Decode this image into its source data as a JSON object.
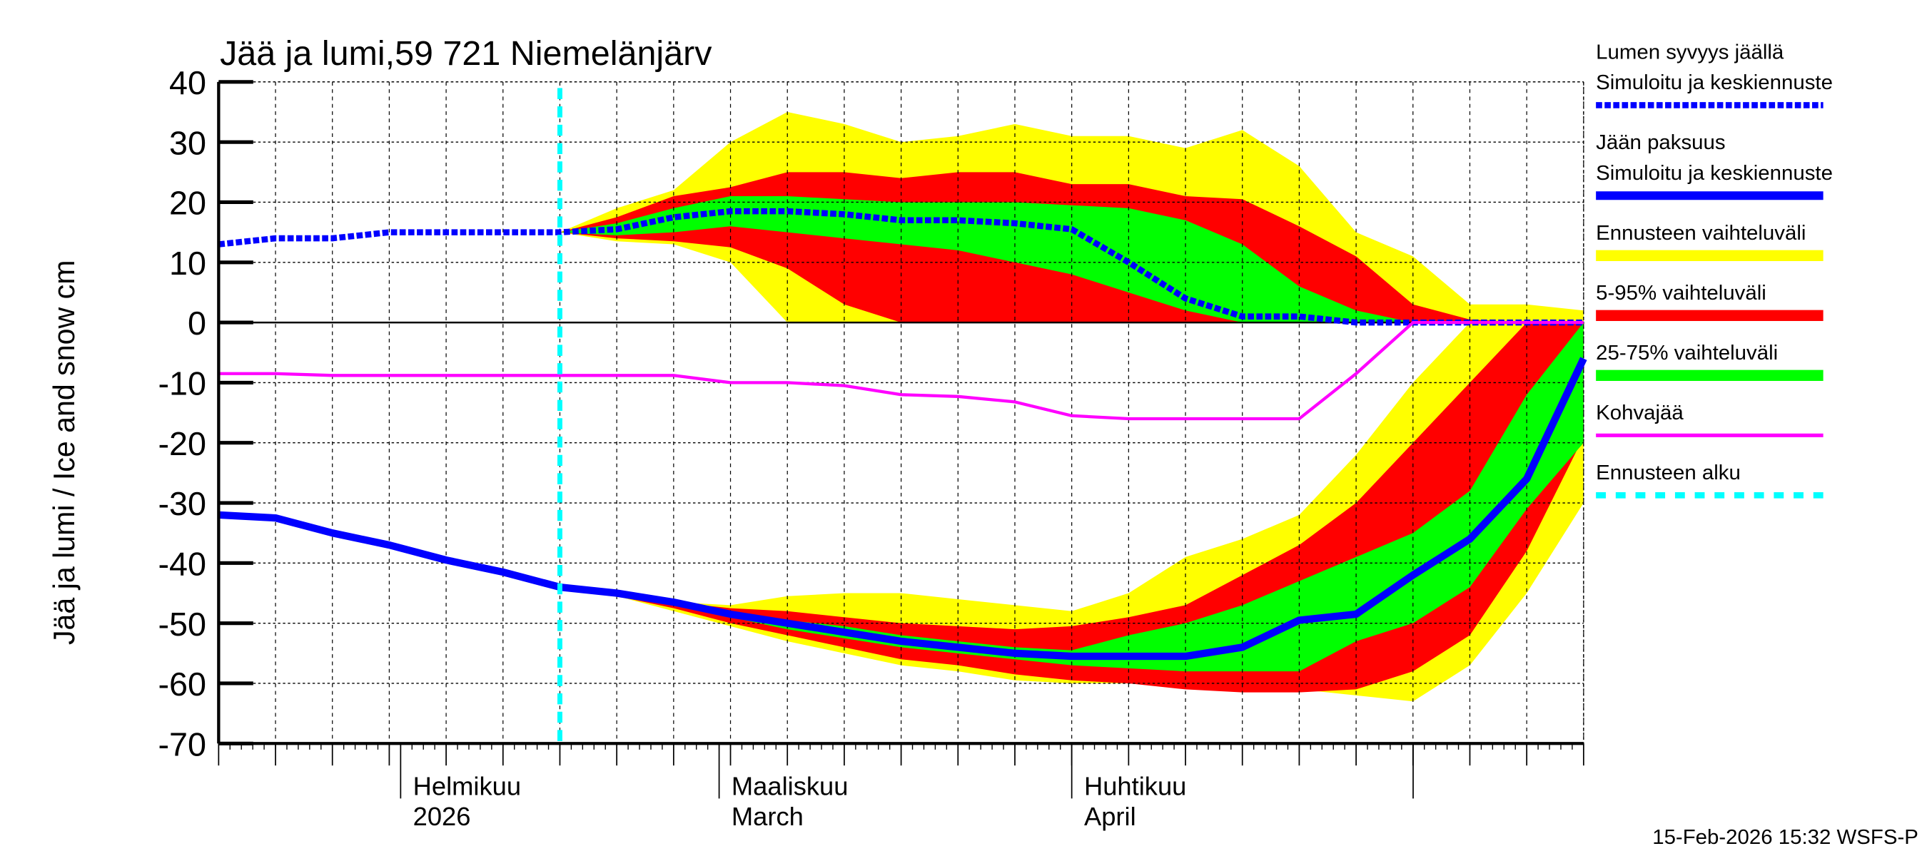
{
  "chart_data": {
    "type": "area",
    "title": "Jää ja lumi,59 721 Niemelänjärv",
    "ylabel": "Jää ja lumi / Ice and snow    cm",
    "ylim": [
      -70,
      40
    ],
    "yticks": [
      40,
      30,
      20,
      10,
      0,
      -10,
      -20,
      -30,
      -40,
      -50,
      -60,
      -70
    ],
    "xlim": [
      "2026-01-16",
      "2026-05-16"
    ],
    "month_labels": [
      {
        "date": "2026-02-01",
        "line1": "Helmikuu",
        "line2": "2026"
      },
      {
        "date": "2026-03-01",
        "line1": "Maaliskuu",
        "line2": "March"
      },
      {
        "date": "2026-04-01",
        "line1": "Huhtikuu",
        "line2": "April"
      }
    ],
    "grid": true,
    "legend_placement": "right",
    "forecast_start": "2026-02-15",
    "dates": [
      "2026-01-16",
      "2026-01-21",
      "2026-01-26",
      "2026-01-31",
      "2026-02-05",
      "2026-02-10",
      "2026-02-15",
      "2026-02-20",
      "2026-02-25",
      "2026-03-02",
      "2026-03-07",
      "2026-03-12",
      "2026-03-17",
      "2026-03-22",
      "2026-03-27",
      "2026-04-01",
      "2026-04-06",
      "2026-04-11",
      "2026-04-16",
      "2026-04-21",
      "2026-04-26",
      "2026-05-01",
      "2026-05-06",
      "2026-05-11",
      "2026-05-16"
    ],
    "series": [
      {
        "name": "Lumen syvyys jäällä Simuloitu ja keskiennuste",
        "color": "#0000ff",
        "style": "dotted",
        "values": [
          13,
          14,
          14,
          15,
          15,
          15,
          15,
          15.5,
          17.5,
          18.5,
          18.5,
          18,
          17,
          17,
          16.5,
          15.5,
          10,
          4,
          1,
          1,
          0,
          0,
          0,
          0,
          0
        ]
      },
      {
        "name": "Jään paksuus Simuloitu ja keskiennuste",
        "color": "#0000ff",
        "style": "solid",
        "values": [
          -32,
          -32.5,
          -35,
          -37,
          -39.5,
          -41.5,
          -44,
          -45,
          -46.5,
          -48.5,
          -50,
          -51.5,
          -53,
          -54,
          -55,
          -55.5,
          -55.5,
          -55.5,
          -54,
          -49.5,
          -48.5,
          -42,
          -36,
          -26,
          -6
        ]
      },
      {
        "name": "Kohvajää",
        "color": "#ff00ff",
        "style": "solid",
        "values": [
          -8.5,
          -8.5,
          -8.8,
          -8.8,
          -8.8,
          -8.8,
          -8.8,
          -8.8,
          -8.8,
          -10,
          -10,
          -10.5,
          -12,
          -12.3,
          -13.2,
          -15.5,
          -16,
          -16,
          -16,
          -16,
          -8.5,
          0,
          0,
          0,
          0
        ]
      }
    ],
    "bands_start_index": 6,
    "bands": {
      "snow": {
        "yellow_min": [
          15,
          13.5,
          13,
          10,
          0,
          0,
          0,
          0,
          0,
          0,
          0,
          0,
          0,
          0,
          0,
          0,
          0,
          0,
          0
        ],
        "yellow_max": [
          15,
          19,
          22,
          30,
          35,
          33,
          30,
          31,
          33,
          31,
          31,
          29,
          32,
          26,
          15,
          11,
          3,
          3,
          2
        ],
        "red_min": [
          15,
          14,
          13.5,
          12.5,
          9,
          3,
          0,
          0,
          0,
          0,
          0,
          0,
          0,
          0,
          0,
          0,
          0,
          0,
          0
        ],
        "red_max": [
          15,
          17.5,
          21,
          22.5,
          25,
          25,
          24,
          25,
          25,
          23,
          23,
          21,
          20.5,
          16,
          11,
          3,
          0.5,
          0,
          0
        ],
        "green_min": [
          15,
          14.5,
          15,
          16,
          15,
          14,
          13,
          12,
          10,
          8,
          5,
          2,
          0,
          0,
          0,
          0,
          0,
          0,
          0
        ],
        "green_max": [
          15,
          16.5,
          19,
          21,
          21,
          20.5,
          20,
          20,
          20,
          19.5,
          19,
          17,
          13,
          6,
          2,
          0,
          0,
          0,
          0
        ]
      },
      "ice": {
        "yellow_min": [
          -44,
          -45.5,
          -48,
          -50.5,
          -53,
          -55,
          -57,
          -58,
          -59.5,
          -60,
          -60,
          -60,
          -60.5,
          -61,
          -62,
          -63,
          -57,
          -45,
          -30
        ],
        "yellow_max": [
          -44,
          -45,
          -46.5,
          -47,
          -45.5,
          -45,
          -45,
          -46,
          -47,
          -48,
          -45,
          -39,
          -36,
          -32,
          -22,
          -10,
          0,
          0,
          0
        ],
        "red_min": [
          -44,
          -45.5,
          -47.5,
          -50,
          -52,
          -54,
          -56,
          -57,
          -58.5,
          -59.5,
          -60,
          -61,
          -61.5,
          -61.5,
          -61,
          -58,
          -52,
          -38,
          -19
        ],
        "red_max": [
          -44,
          -45,
          -46.5,
          -47.5,
          -48,
          -49,
          -50,
          -50.5,
          -51,
          -50.5,
          -49,
          -47,
          -42,
          -37,
          -30,
          -20,
          -10,
          0,
          0
        ],
        "green_min": [
          -44,
          -45.5,
          -47,
          -49,
          -51,
          -52.5,
          -54,
          -55,
          -56,
          -57,
          -57.5,
          -58,
          -58,
          -58,
          -53,
          -50,
          -44,
          -31,
          -20
        ],
        "green_max": [
          -44,
          -45,
          -46.5,
          -48,
          -49.5,
          -50.5,
          -52,
          -53,
          -54,
          -54.5,
          -52,
          -50,
          -47,
          -43,
          -39,
          -35,
          -28,
          -12,
          0
        ]
      }
    },
    "colors": {
      "yellow": "#ffff00",
      "red": "#ff0000",
      "green": "#00ff00",
      "forecast_line": "#00ffff"
    },
    "legend": [
      {
        "line1": "Lumen syvyys jäällä",
        "line2": "Simuloitu ja keskiennuste",
        "color": "#0000ff",
        "style": "dotted"
      },
      {
        "line1": "Jään paksuus",
        "line2": "Simuloitu ja keskiennuste",
        "color": "#0000ff",
        "style": "solid"
      },
      {
        "line1": "Ennusteen vaihteluväli",
        "color": "#ffff00",
        "style": "band"
      },
      {
        "line1": "5-95% vaihteluväli",
        "color": "#ff0000",
        "style": "band"
      },
      {
        "line1": "25-75% vaihteluväli",
        "color": "#00ff00",
        "style": "band"
      },
      {
        "line1": "Kohvajää",
        "color": "#ff00ff",
        "style": "thin"
      },
      {
        "line1": "Ennusteen alku",
        "color": "#00ffff",
        "style": "dashed"
      }
    ],
    "footer": "15-Feb-2026 15:32 WSFS-P"
  }
}
